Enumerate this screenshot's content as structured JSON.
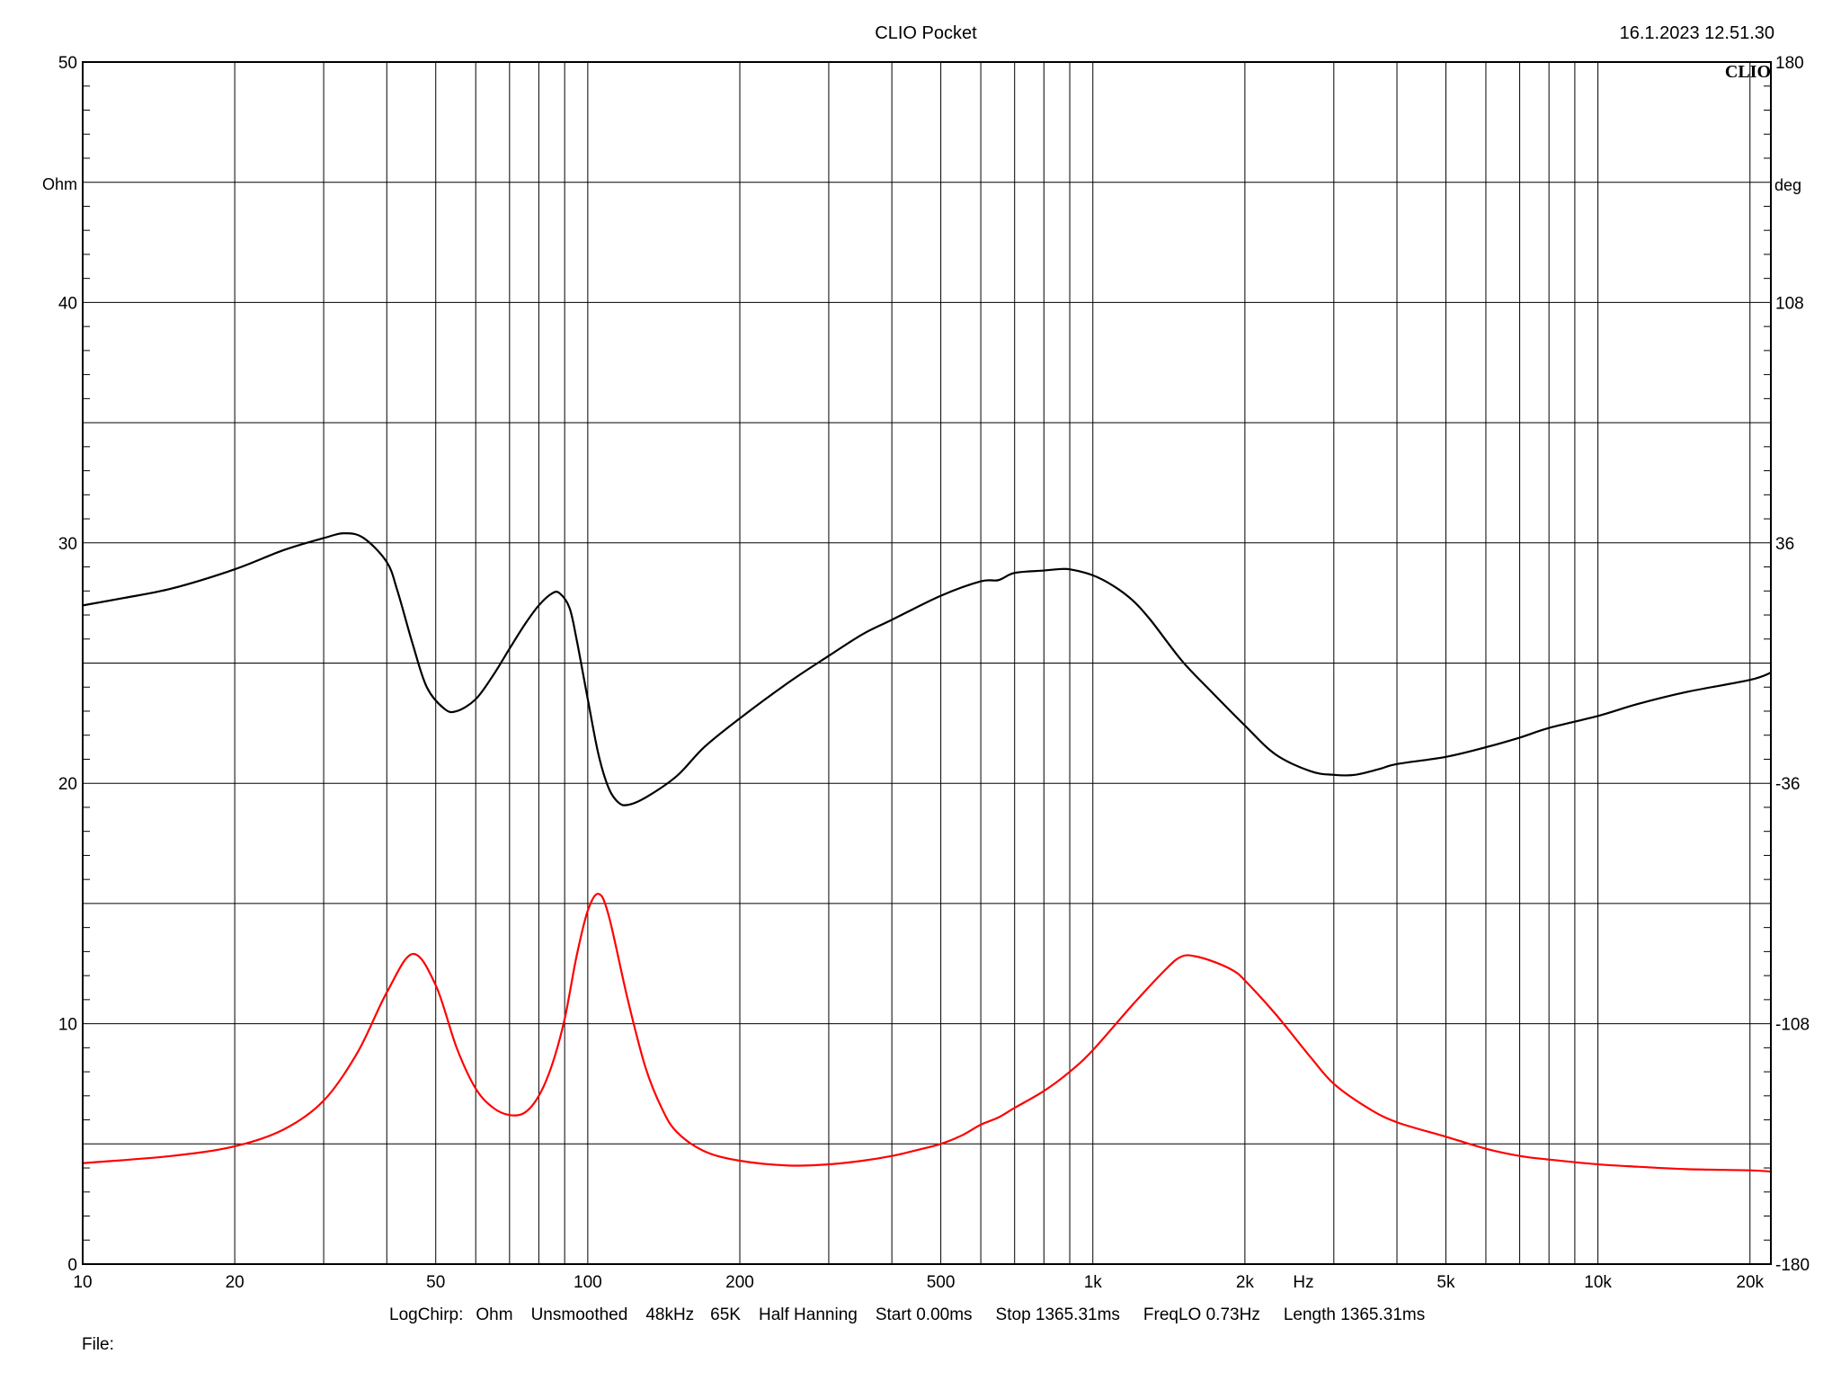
{
  "header": {
    "title": "CLIO Pocket",
    "timestamp": "16.1.2023 12.51.30",
    "logo": "CLIO"
  },
  "footer": {
    "file_label": "File:"
  },
  "colors": {
    "impedance": "#000000",
    "phase": "#ff0000",
    "grid": "#000000",
    "background": "#ffffff"
  },
  "chart_data": {
    "type": "line",
    "title": "CLIO Pocket",
    "x_scale": "log",
    "xlim": [
      10,
      22000
    ],
    "x_unit": "Hz",
    "x_ticks": [
      {
        "v": 10,
        "label": "10"
      },
      {
        "v": 20,
        "label": "20"
      },
      {
        "v": 50,
        "label": "50"
      },
      {
        "v": 100,
        "label": "100"
      },
      {
        "v": 200,
        "label": "200"
      },
      {
        "v": 500,
        "label": "500"
      },
      {
        "v": 1000,
        "label": "1k"
      },
      {
        "v": 2000,
        "label": "2k"
      },
      {
        "v": 5000,
        "label": "5k"
      },
      {
        "v": 10000,
        "label": "10k"
      },
      {
        "v": 20000,
        "label": "20k"
      }
    ],
    "y_left": {
      "unit": "Ohm",
      "range": [
        0,
        50
      ],
      "ticks": [
        0,
        10,
        20,
        30,
        40,
        50
      ]
    },
    "y_right": {
      "unit": "deg",
      "range": [
        -180,
        180
      ],
      "ticks": [
        -180,
        -108,
        -36,
        36,
        108,
        180
      ]
    },
    "grid": true,
    "status_line": [
      "LogChirp:",
      "Ohm",
      "Unsmoothed",
      "48kHz",
      "65K",
      "Half Hanning",
      "Start 0.00ms",
      "Stop 1365.31ms",
      "FreqLO 0.73Hz",
      "Length 1365.31ms"
    ],
    "series": [
      {
        "axis": "left",
        "color": "#ff0000",
        "points": [
          [
            10,
            4.2
          ],
          [
            15,
            4.5
          ],
          [
            20,
            4.9
          ],
          [
            25,
            5.6
          ],
          [
            30,
            6.8
          ],
          [
            35,
            8.8
          ],
          [
            40,
            11.3
          ],
          [
            45,
            12.9
          ],
          [
            50,
            11.6
          ],
          [
            55,
            9.0
          ],
          [
            60,
            7.3
          ],
          [
            65,
            6.5
          ],
          [
            70,
            6.2
          ],
          [
            75,
            6.3
          ],
          [
            80,
            7.0
          ],
          [
            85,
            8.3
          ],
          [
            90,
            10.2
          ],
          [
            95,
            12.8
          ],
          [
            100,
            14.7
          ],
          [
            105,
            15.4
          ],
          [
            110,
            14.5
          ],
          [
            120,
            11.0
          ],
          [
            130,
            8.2
          ],
          [
            140,
            6.5
          ],
          [
            150,
            5.5
          ],
          [
            170,
            4.7
          ],
          [
            200,
            4.3
          ],
          [
            250,
            4.1
          ],
          [
            300,
            4.15
          ],
          [
            350,
            4.3
          ],
          [
            400,
            4.5
          ],
          [
            450,
            4.75
          ],
          [
            500,
            5.0
          ],
          [
            550,
            5.35
          ],
          [
            600,
            5.8
          ],
          [
            650,
            6.1
          ],
          [
            700,
            6.5
          ],
          [
            800,
            7.2
          ],
          [
            900,
            8.0
          ],
          [
            1000,
            8.9
          ],
          [
            1200,
            10.8
          ],
          [
            1400,
            12.3
          ],
          [
            1500,
            12.8
          ],
          [
            1600,
            12.8
          ],
          [
            1750,
            12.55
          ],
          [
            1900,
            12.2
          ],
          [
            2000,
            11.8
          ],
          [
            2300,
            10.4
          ],
          [
            2700,
            8.6
          ],
          [
            3000,
            7.5
          ],
          [
            3500,
            6.5
          ],
          [
            4000,
            5.9
          ],
          [
            5000,
            5.3
          ],
          [
            6000,
            4.8
          ],
          [
            7000,
            4.5
          ],
          [
            8000,
            4.35
          ],
          [
            10000,
            4.15
          ],
          [
            12000,
            4.05
          ],
          [
            15000,
            3.95
          ],
          [
            20000,
            3.9
          ],
          [
            22000,
            3.85
          ]
        ]
      },
      {
        "axis": "right",
        "color": "#000000",
        "points": [
          [
            10,
            27.4
          ],
          [
            12,
            27.7
          ],
          [
            15,
            28.1
          ],
          [
            20,
            28.9
          ],
          [
            25,
            29.7
          ],
          [
            30,
            30.2
          ],
          [
            33,
            30.4
          ],
          [
            36,
            30.2
          ],
          [
            40,
            29.2
          ],
          [
            42,
            28.0
          ],
          [
            45,
            25.8
          ],
          [
            48,
            24.0
          ],
          [
            52,
            23.1
          ],
          [
            55,
            23.0
          ],
          [
            60,
            23.5
          ],
          [
            65,
            24.5
          ],
          [
            70,
            25.6
          ],
          [
            75,
            26.6
          ],
          [
            80,
            27.4
          ],
          [
            85,
            27.9
          ],
          [
            88,
            27.9
          ],
          [
            92,
            27.3
          ],
          [
            95,
            26.0
          ],
          [
            100,
            23.5
          ],
          [
            105,
            21.2
          ],
          [
            110,
            19.8
          ],
          [
            115,
            19.2
          ],
          [
            120,
            19.1
          ],
          [
            130,
            19.4
          ],
          [
            150,
            20.3
          ],
          [
            170,
            21.5
          ],
          [
            200,
            22.7
          ],
          [
            250,
            24.2
          ],
          [
            300,
            25.3
          ],
          [
            350,
            26.2
          ],
          [
            400,
            26.8
          ],
          [
            500,
            27.8
          ],
          [
            600,
            28.4
          ],
          [
            650,
            28.45
          ],
          [
            700,
            28.75
          ],
          [
            800,
            28.85
          ],
          [
            850,
            28.9
          ],
          [
            900,
            28.9
          ],
          [
            1000,
            28.65
          ],
          [
            1100,
            28.2
          ],
          [
            1200,
            27.6
          ],
          [
            1300,
            26.8
          ],
          [
            1500,
            25.1
          ],
          [
            1700,
            23.9
          ],
          [
            2000,
            22.4
          ],
          [
            2300,
            21.2
          ],
          [
            2700,
            20.5
          ],
          [
            3000,
            20.35
          ],
          [
            3300,
            20.35
          ],
          [
            3700,
            20.6
          ],
          [
            4000,
            20.8
          ],
          [
            5000,
            21.1
          ],
          [
            6000,
            21.5
          ],
          [
            7000,
            21.9
          ],
          [
            8000,
            22.3
          ],
          [
            10000,
            22.8
          ],
          [
            12000,
            23.3
          ],
          [
            15000,
            23.8
          ],
          [
            20000,
            24.3
          ],
          [
            22000,
            24.6
          ]
        ]
      }
    ]
  }
}
